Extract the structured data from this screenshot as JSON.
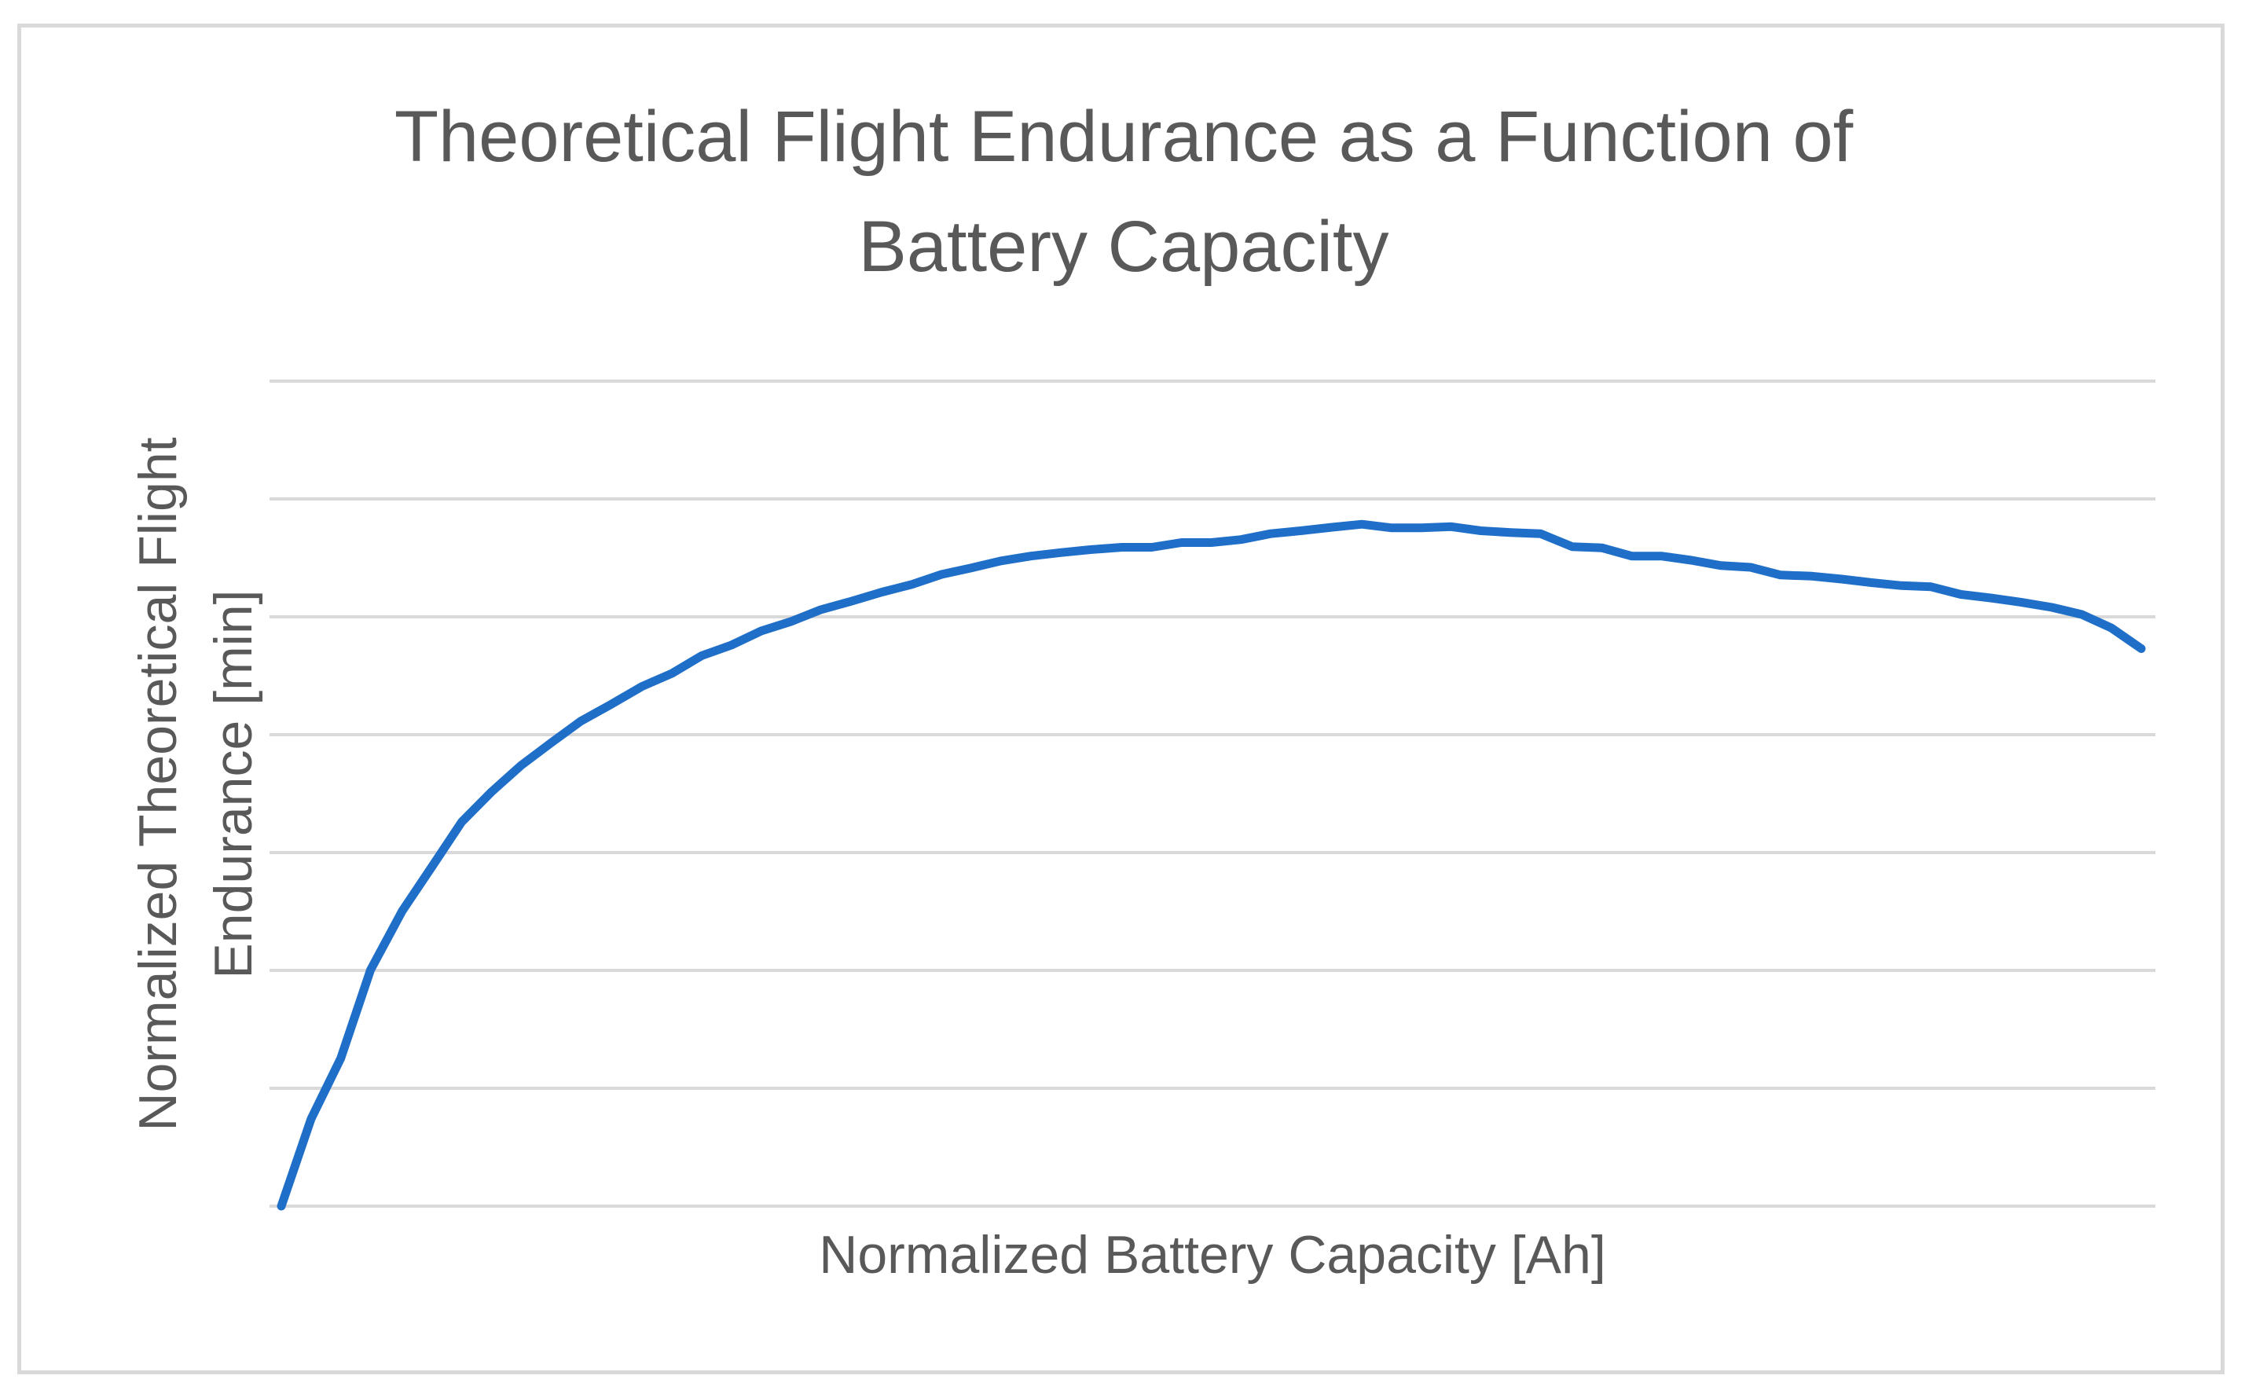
{
  "chart_data": {
    "type": "line",
    "title": "Theoretical Flight Endurance as a Function of Battery Capacity",
    "title_lines": [
      "Theoretical Flight Endurance as a Function of",
      "Battery Capacity"
    ],
    "xlabel": "Normalized Battery Capacity [Ah]",
    "ylabel": "Normalized Theoretical Flight Endurance [min]",
    "ylabel_lines": [
      "Normalized Theoretical Flight",
      "Endurance [min]"
    ],
    "xlim": [
      0,
      1
    ],
    "ylim": [
      0,
      1.4
    ],
    "gridlines_y": [
      0.2,
      0.4,
      0.6,
      0.8,
      1.0,
      1.2,
      1.4
    ],
    "grid": true,
    "legend": "none",
    "series": [
      {
        "name": "Theoretical Flight Endurance",
        "color": "#1f6fc9",
        "x": [
          0.0,
          0.016,
          0.032,
          0.048,
          0.065,
          0.081,
          0.097,
          0.113,
          0.129,
          0.145,
          0.161,
          0.177,
          0.194,
          0.21,
          0.226,
          0.242,
          0.258,
          0.274,
          0.29,
          0.306,
          0.323,
          0.339,
          0.355,
          0.371,
          0.387,
          0.403,
          0.419,
          0.435,
          0.452,
          0.468,
          0.484,
          0.5,
          0.516,
          0.532,
          0.548,
          0.565,
          0.581,
          0.597,
          0.613,
          0.629,
          0.645,
          0.661,
          0.677,
          0.694,
          0.71,
          0.726,
          0.742,
          0.758,
          0.774,
          0.79,
          0.806,
          0.823,
          0.839,
          0.855,
          0.871,
          0.887,
          0.903,
          0.919,
          0.935,
          0.952,
          0.968,
          0.984,
          1.0
        ],
        "values": [
          0.0,
          0.148,
          0.251,
          0.401,
          0.501,
          0.576,
          0.652,
          0.703,
          0.748,
          0.786,
          0.823,
          0.851,
          0.882,
          0.904,
          0.934,
          0.952,
          0.976,
          0.992,
          1.012,
          1.026,
          1.042,
          1.055,
          1.072,
          1.083,
          1.095,
          1.103,
          1.109,
          1.114,
          1.118,
          1.118,
          1.126,
          1.126,
          1.131,
          1.141,
          1.146,
          1.152,
          1.157,
          1.151,
          1.151,
          1.153,
          1.146,
          1.143,
          1.141,
          1.119,
          1.117,
          1.103,
          1.103,
          1.096,
          1.087,
          1.084,
          1.071,
          1.069,
          1.064,
          1.058,
          1.053,
          1.051,
          1.038,
          1.032,
          1.025,
          1.016,
          1.004,
          0.981,
          0.946
        ]
      }
    ]
  }
}
